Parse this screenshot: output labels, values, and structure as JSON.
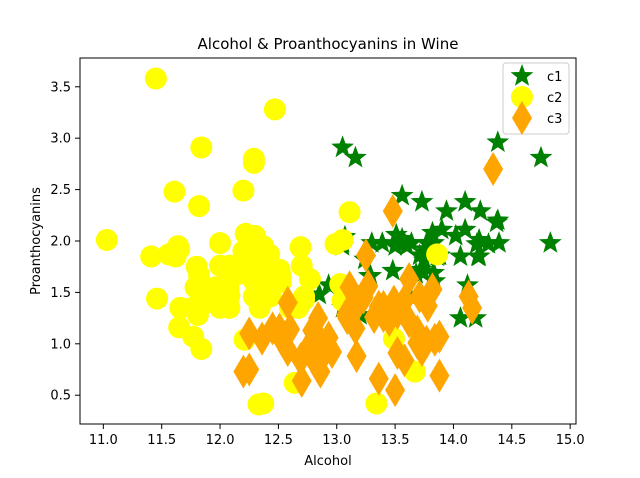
{
  "chart_data": {
    "type": "scatter",
    "title": "Alcohol & Proanthocyanins in Wine",
    "xlabel": "Alcohol",
    "ylabel": "Proanthocyanins",
    "xlim": [
      10.8,
      15.05
    ],
    "ylim": [
      0.22,
      3.78
    ],
    "xticks": [
      11.0,
      11.5,
      12.0,
      12.5,
      13.0,
      13.5,
      14.0,
      14.5,
      15.0
    ],
    "yticks": [
      0.5,
      1.0,
      1.5,
      2.0,
      2.5,
      3.0,
      3.5
    ],
    "xtick_labels": [
      "11.0",
      "11.5",
      "12.0",
      "12.5",
      "13.0",
      "13.5",
      "14.0",
      "14.5",
      "15.0"
    ],
    "ytick_labels": [
      "0.5",
      "1.0",
      "1.5",
      "2.0",
      "2.5",
      "3.0",
      "3.5"
    ],
    "grid": false,
    "legend_position": "top-right",
    "series": [
      {
        "name": "c1",
        "marker": "star",
        "color": "#008000",
        "points": [
          [
            14.23,
            2.29
          ],
          [
            13.2,
            1.28
          ],
          [
            13.16,
            2.81
          ],
          [
            14.37,
            2.18
          ],
          [
            13.24,
            1.82
          ],
          [
            14.2,
            1.97
          ],
          [
            14.39,
            1.98
          ],
          [
            14.06,
            1.25
          ],
          [
            14.83,
            1.98
          ],
          [
            13.86,
            1.85
          ],
          [
            14.1,
            2.38
          ],
          [
            14.12,
            1.57
          ],
          [
            13.75,
            1.81
          ],
          [
            14.75,
            2.81
          ],
          [
            14.38,
            2.96
          ],
          [
            13.63,
            1.46
          ],
          [
            14.3,
            1.97
          ],
          [
            13.83,
            1.69
          ],
          [
            14.19,
            1.25
          ],
          [
            13.64,
            1.98
          ],
          [
            14.06,
            1.85
          ],
          [
            12.93,
            1.57
          ],
          [
            13.71,
            1.86
          ],
          [
            12.85,
            1.48
          ],
          [
            13.5,
            1.95
          ],
          [
            13.05,
            2.91
          ],
          [
            13.39,
            1.98
          ],
          [
            13.3,
            1.98
          ],
          [
            13.87,
            1.86
          ],
          [
            14.02,
            2.05
          ],
          [
            13.73,
            2.38
          ],
          [
            13.58,
            1.98
          ],
          [
            13.68,
            1.68
          ],
          [
            13.76,
            1.92
          ],
          [
            13.51,
            2.06
          ],
          [
            13.48,
            1.71
          ],
          [
            13.28,
            1.66
          ],
          [
            13.05,
            1.98
          ],
          [
            13.07,
            2.04
          ],
          [
            14.22,
            2.01
          ],
          [
            13.56,
            2.44
          ],
          [
            13.41,
            1.35
          ],
          [
            13.88,
            1.86
          ],
          [
            13.24,
            1.53
          ],
          [
            13.05,
            1.35
          ],
          [
            14.21,
            1.85
          ],
          [
            14.38,
            2.2
          ],
          [
            13.9,
            2.11
          ],
          [
            14.1,
            2.11
          ],
          [
            13.94,
            2.29
          ],
          [
            13.05,
            1.95
          ],
          [
            13.83,
            1.98
          ],
          [
            13.82,
            2.08
          ],
          [
            13.77,
            1.98
          ],
          [
            13.74,
            1.69
          ],
          [
            13.56,
            2.02
          ],
          [
            14.22,
            1.85
          ],
          [
            13.29,
            1.66
          ],
          [
            13.72,
            1.72
          ],
          [
            13.6,
            1.95
          ],
          [
            13.84,
            1.61
          ]
        ]
      },
      {
        "name": "c2",
        "marker": "circle",
        "color": "#ffff00",
        "points": [
          [
            12.37,
            0.42
          ],
          [
            12.33,
            0.41
          ],
          [
            12.64,
            0.62
          ],
          [
            13.67,
            0.73
          ],
          [
            12.37,
            1.87
          ],
          [
            12.17,
            1.76
          ],
          [
            12.37,
            1.66
          ],
          [
            13.11,
            2.28
          ],
          [
            12.37,
            1.69
          ],
          [
            13.34,
            0.42
          ],
          [
            12.21,
            1.04
          ],
          [
            12.29,
            1.46
          ],
          [
            13.86,
            1.87
          ],
          [
            13.49,
            1.05
          ],
          [
            12.99,
            1.97
          ],
          [
            11.96,
            1.55
          ],
          [
            11.66,
            1.35
          ],
          [
            13.03,
            1.58
          ],
          [
            11.84,
            0.95
          ],
          [
            12.33,
            1.62
          ],
          [
            12.7,
            1.76
          ],
          [
            12.0,
            1.35
          ],
          [
            12.72,
            1.43
          ],
          [
            12.08,
            1.71
          ],
          [
            13.05,
            1.42
          ],
          [
            11.84,
            2.91
          ],
          [
            12.67,
            1.35
          ],
          [
            12.16,
            1.68
          ],
          [
            11.65,
            1.92
          ],
          [
            11.64,
            1.95
          ],
          [
            12.08,
            1.35
          ],
          [
            12.08,
            1.76
          ],
          [
            12.0,
            1.98
          ],
          [
            12.69,
            1.94
          ],
          [
            12.29,
            2.8
          ],
          [
            11.62,
            1.85
          ],
          [
            12.47,
            3.28
          ],
          [
            11.81,
            1.28
          ],
          [
            12.29,
            1.61
          ],
          [
            12.37,
            1.76
          ],
          [
            12.29,
            2.76
          ],
          [
            12.08,
            1.47
          ],
          [
            12.6,
            1.35
          ],
          [
            12.34,
            1.35
          ],
          [
            11.82,
            2.34
          ],
          [
            12.51,
            1.72
          ],
          [
            12.42,
            1.87
          ],
          [
            12.25,
            1.74
          ],
          [
            12.72,
            1.46
          ],
          [
            12.22,
            2.07
          ],
          [
            11.61,
            2.48
          ],
          [
            11.46,
            1.44
          ],
          [
            12.52,
            1.66
          ],
          [
            11.76,
            1.35
          ],
          [
            11.41,
            1.85
          ],
          [
            12.08,
            1.62
          ],
          [
            11.03,
            2.01
          ],
          [
            11.82,
            1.67
          ],
          [
            12.42,
            1.52
          ],
          [
            12.77,
            1.63
          ],
          [
            12.0,
            1.76
          ],
          [
            11.45,
            3.58
          ],
          [
            11.56,
            1.87
          ],
          [
            12.42,
            1.48
          ],
          [
            13.05,
            2.01
          ],
          [
            11.87,
            1.4
          ],
          [
            12.07,
            1.54
          ],
          [
            12.43,
            1.46
          ],
          [
            11.79,
            1.55
          ],
          [
            12.37,
            1.95
          ],
          [
            12.04,
            1.43
          ],
          [
            12.2,
            2.49
          ],
          [
            11.65,
            1.16
          ],
          [
            11.77,
            1.07
          ],
          [
            11.8,
            1.75
          ],
          [
            12.3,
            2.05
          ],
          [
            12.2,
            1.9
          ],
          [
            12.52,
            1.6
          ],
          [
            12.41,
            1.72
          ],
          [
            12.38,
            1.5
          ]
        ]
      },
      {
        "name": "c3",
        "marker": "diamond",
        "color": "#ffa500",
        "points": [
          [
            12.86,
            0.73
          ],
          [
            12.88,
            0.88
          ],
          [
            12.81,
            0.83
          ],
          [
            12.7,
            0.64
          ],
          [
            12.51,
            1.14
          ],
          [
            12.6,
            1.14
          ],
          [
            12.25,
            1.1
          ],
          [
            12.53,
            1.04
          ],
          [
            13.49,
            1.41
          ],
          [
            12.84,
            1.25
          ],
          [
            12.93,
            1.06
          ],
          [
            13.36,
            1.36
          ],
          [
            13.52,
            1.3
          ],
          [
            13.62,
            1.22
          ],
          [
            12.25,
            0.75
          ],
          [
            13.16,
            1.15
          ],
          [
            13.88,
            1.07
          ],
          [
            12.87,
            0.94
          ],
          [
            13.32,
            1.26
          ],
          [
            13.08,
            1.28
          ],
          [
            13.5,
            0.55
          ],
          [
            12.79,
            1.13
          ],
          [
            13.11,
            1.55
          ],
          [
            13.23,
            1.45
          ],
          [
            12.58,
            0.94
          ],
          [
            13.17,
            0.88
          ],
          [
            13.84,
            1.04
          ],
          [
            12.45,
            1.15
          ],
          [
            14.34,
            2.7
          ],
          [
            13.48,
            2.29
          ],
          [
            12.36,
            1.05
          ],
          [
            13.69,
            1.01
          ],
          [
            12.85,
            1.05
          ],
          [
            12.96,
            0.92
          ],
          [
            13.78,
            1.37
          ],
          [
            13.73,
            0.94
          ],
          [
            13.45,
            1.23
          ],
          [
            12.82,
            0.82
          ],
          [
            13.58,
            0.84
          ],
          [
            13.4,
            1.36
          ],
          [
            12.2,
            0.73
          ],
          [
            12.77,
            0.99
          ],
          [
            14.16,
            1.35
          ],
          [
            13.71,
            1.46
          ],
          [
            13.4,
            1.27
          ],
          [
            13.27,
            1.56
          ],
          [
            13.17,
            1.36
          ],
          [
            14.13,
            1.46
          ],
          [
            13.36,
            0.66
          ],
          [
            13.52,
            0.91
          ],
          [
            13.62,
            1.63
          ],
          [
            13.88,
            0.69
          ],
          [
            13.77,
            1.02
          ],
          [
            13.25,
            1.86
          ],
          [
            13.82,
            1.53
          ],
          [
            12.58,
            1.4
          ],
          [
            13.09,
            1.25
          ],
          [
            13.69,
            1.12
          ],
          [
            12.69,
            0.85
          ],
          [
            13.58,
            1.42
          ]
        ]
      }
    ]
  }
}
